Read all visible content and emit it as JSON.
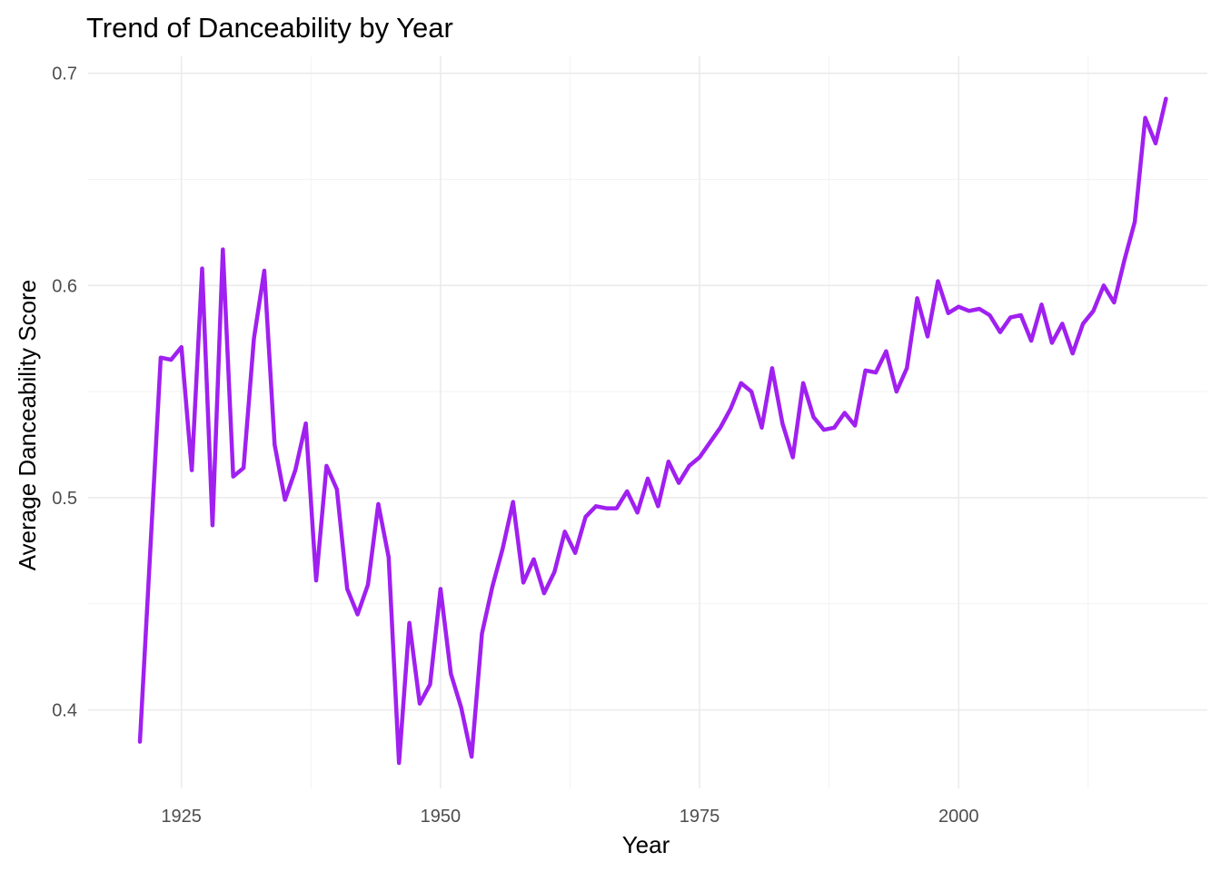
{
  "chart_data": {
    "type": "line",
    "title": "Trend of Danceability by Year",
    "xlabel": "Year",
    "ylabel": "Average Danceability Score",
    "xlim": [
      1916,
      2024
    ],
    "ylim": [
      0.363,
      0.708
    ],
    "x_ticks": [
      1925,
      1950,
      1975,
      2000
    ],
    "y_ticks": [
      0.4,
      0.5,
      0.6,
      0.7
    ],
    "grid": true,
    "legend": "none",
    "line_color": "#a020f0",
    "series": [
      {
        "x": [
          1921,
          1922,
          1923,
          1924,
          1925,
          1926,
          1927,
          1928,
          1929,
          1930,
          1931,
          1932,
          1933,
          1934,
          1935,
          1936,
          1937,
          1938,
          1939,
          1940,
          1941,
          1942,
          1943,
          1944,
          1945,
          1946,
          1947,
          1948,
          1949,
          1950,
          1951,
          1952,
          1953,
          1954,
          1955,
          1956,
          1957,
          1958,
          1959,
          1960,
          1961,
          1962,
          1963,
          1964,
          1965,
          1966,
          1967,
          1968,
          1969,
          1970,
          1971,
          1972,
          1973,
          1974,
          1975,
          1976,
          1977,
          1978,
          1979,
          1980,
          1981,
          1982,
          1983,
          1984,
          1985,
          1986,
          1987,
          1988,
          1989,
          1990,
          1991,
          1992,
          1993,
          1994,
          1995,
          1996,
          1997,
          1998,
          1999,
          2000,
          2001,
          2002,
          2003,
          2004,
          2005,
          2006,
          2007,
          2008,
          2009,
          2010,
          2011,
          2012,
          2013,
          2014,
          2015,
          2016,
          2017,
          2018,
          2019,
          2020
        ],
        "values": [
          0.385,
          0.475,
          0.566,
          0.565,
          0.571,
          0.513,
          0.608,
          0.487,
          0.617,
          0.51,
          0.514,
          0.575,
          0.607,
          0.525,
          0.499,
          0.513,
          0.535,
          0.461,
          0.515,
          0.504,
          0.457,
          0.445,
          0.459,
          0.497,
          0.472,
          0.375,
          0.441,
          0.403,
          0.412,
          0.457,
          0.417,
          0.401,
          0.378,
          0.436,
          0.458,
          0.476,
          0.498,
          0.46,
          0.471,
          0.455,
          0.465,
          0.484,
          0.474,
          0.491,
          0.496,
          0.495,
          0.495,
          0.503,
          0.493,
          0.509,
          0.496,
          0.517,
          0.507,
          0.515,
          0.519,
          0.526,
          0.533,
          0.542,
          0.554,
          0.55,
          0.533,
          0.561,
          0.535,
          0.519,
          0.554,
          0.538,
          0.532,
          0.533,
          0.54,
          0.534,
          0.56,
          0.559,
          0.569,
          0.55,
          0.561,
          0.594,
          0.576,
          0.602,
          0.587,
          0.59,
          0.588,
          0.589,
          0.586,
          0.578,
          0.585,
          0.586,
          0.574,
          0.591,
          0.573,
          0.582,
          0.568,
          0.582,
          0.588,
          0.6,
          0.592,
          0.612,
          0.63,
          0.679,
          0.667,
          0.688
        ]
      }
    ]
  }
}
